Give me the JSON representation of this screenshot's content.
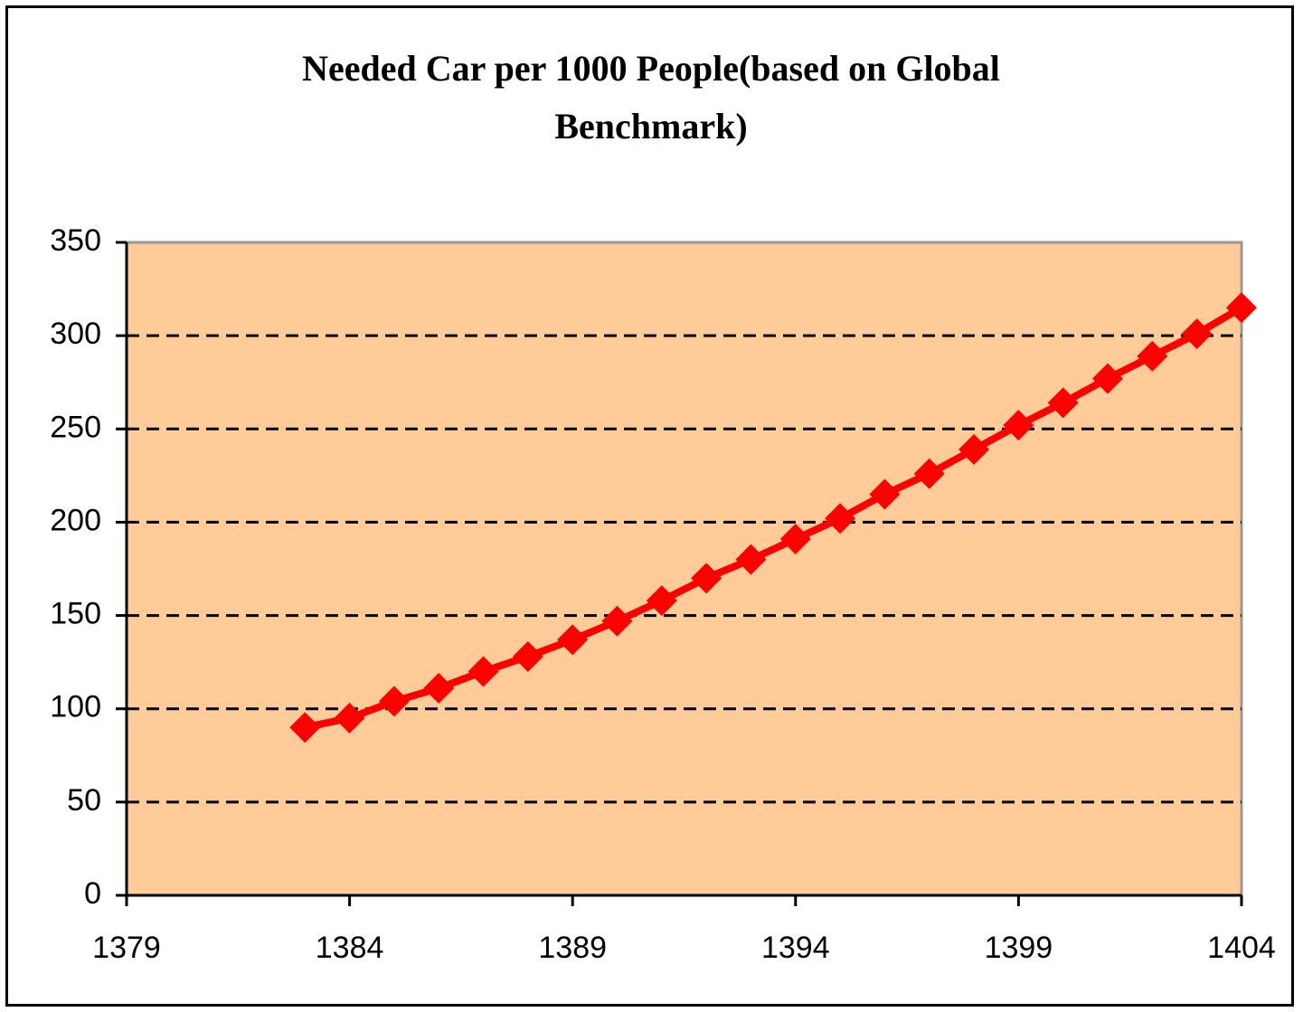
{
  "chart_data": {
    "type": "line",
    "title": "Needed Car per 1000 People(based on Global Benchmark)",
    "x": [
      1383,
      1384,
      1385,
      1386,
      1387,
      1388,
      1389,
      1390,
      1391,
      1392,
      1393,
      1394,
      1395,
      1396,
      1397,
      1398,
      1399,
      1400,
      1401,
      1402,
      1403,
      1404
    ],
    "series": [
      {
        "color": "#ff0000",
        "values": [
          90,
          95,
          104,
          111,
          120,
          128,
          137,
          147,
          158,
          170,
          180,
          191,
          202,
          215,
          226,
          239,
          252,
          264,
          277,
          289,
          301,
          315
        ]
      }
    ],
    "xlim": [
      1379,
      1404
    ],
    "xticks": [
      1379,
      1384,
      1389,
      1394,
      1399,
      1404
    ],
    "ylim": [
      0,
      350
    ],
    "yticks": [
      0,
      50,
      100,
      150,
      200,
      250,
      300,
      350
    ],
    "grid": true,
    "plot_background": "#ffcc99"
  }
}
